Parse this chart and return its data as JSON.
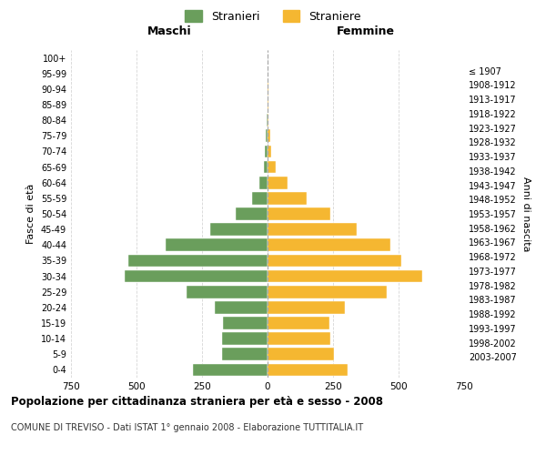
{
  "age_groups": [
    "0-4",
    "5-9",
    "10-14",
    "15-19",
    "20-24",
    "25-29",
    "30-34",
    "35-39",
    "40-44",
    "45-49",
    "50-54",
    "55-59",
    "60-64",
    "65-69",
    "70-74",
    "75-79",
    "80-84",
    "85-89",
    "90-94",
    "95-99",
    "100+"
  ],
  "birth_years": [
    "2003-2007",
    "1998-2002",
    "1993-1997",
    "1988-1992",
    "1983-1987",
    "1978-1982",
    "1973-1977",
    "1968-1972",
    "1963-1967",
    "1958-1962",
    "1953-1957",
    "1948-1952",
    "1943-1947",
    "1938-1942",
    "1933-1937",
    "1928-1932",
    "1923-1927",
    "1918-1922",
    "1913-1917",
    "1908-1912",
    "≤ 1907"
  ],
  "maschi": [
    285,
    175,
    175,
    170,
    200,
    310,
    545,
    530,
    390,
    220,
    120,
    60,
    30,
    15,
    10,
    8,
    2,
    1,
    0,
    0,
    0
  ],
  "femmine": [
    305,
    255,
    240,
    235,
    295,
    455,
    590,
    510,
    470,
    340,
    240,
    150,
    75,
    30,
    15,
    10,
    5,
    3,
    2,
    1,
    1
  ],
  "male_color": "#6a9e5c",
  "female_color": "#f5b731",
  "male_label": "Stranieri",
  "female_label": "Straniere",
  "title": "Popolazione per cittadinanza straniera per età e sesso - 2008",
  "subtitle": "COMUNE DI TREVISO - Dati ISTAT 1° gennaio 2008 - Elaborazione TUTTITALIA.IT",
  "left_header": "Maschi",
  "right_header": "Femmine",
  "left_axis_label": "Fasce di età",
  "right_axis_label": "Anni di nascita",
  "xlim": 750,
  "background_color": "#ffffff",
  "grid_color": "#cccccc"
}
